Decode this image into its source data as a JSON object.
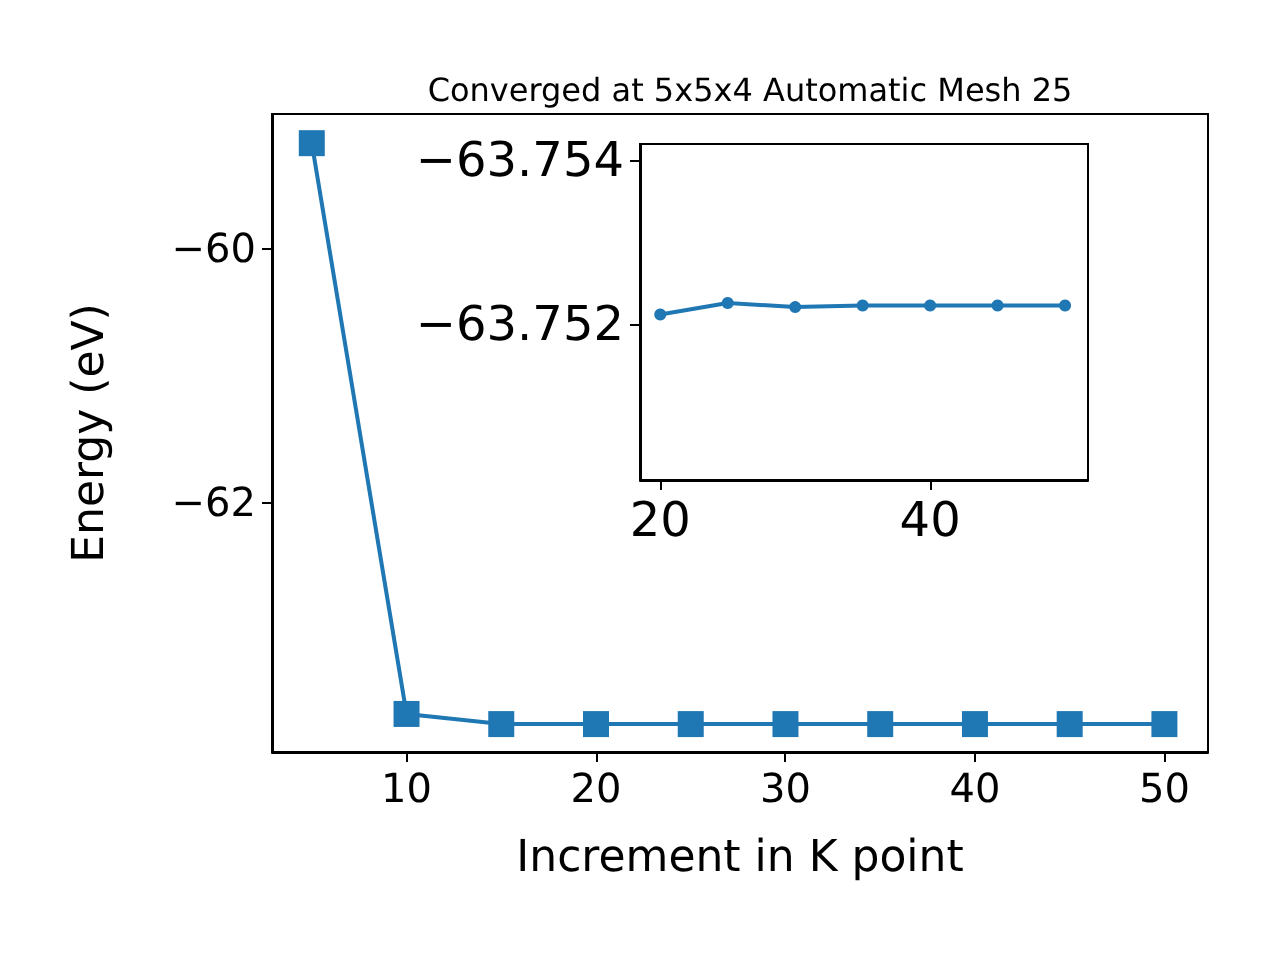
{
  "chart_data": [
    {
      "type": "line",
      "title": "Converged at 5x5x4 Automatic Mesh 25",
      "xlabel": "Increment in K point",
      "ylabel": "Energy (eV)",
      "x": [
        5,
        10,
        15,
        20,
        25,
        30,
        35,
        40,
        45,
        50
      ],
      "series": [
        {
          "color": "#1f77b4",
          "values": [
            -59.17,
            -63.67,
            -63.75,
            -63.75,
            -63.75,
            -63.75,
            -63.75,
            -63.75,
            -63.75,
            -63.75
          ]
        }
      ],
      "xlim": [
        2.9,
        52.3
      ],
      "xticks": [
        10,
        20,
        30,
        40,
        50
      ],
      "ylim": [
        -63.97,
        -58.94
      ],
      "yticks": [
        {
          "value": -60,
          "label": "−60"
        },
        {
          "value": -62,
          "label": "−62"
        }
      ],
      "marker": "square",
      "line_style": "solid",
      "grid": false
    },
    {
      "type": "line",
      "x": [
        20,
        25,
        30,
        35,
        40,
        45,
        50
      ],
      "series": [
        {
          "color": "#1f77b4",
          "values": [
            -63.75212,
            -63.75226,
            -63.75221,
            -63.75223,
            -63.75223,
            -63.75223,
            -63.75223
          ]
        }
      ],
      "xlim": [
        18.5,
        51.7
      ],
      "xticks": [
        20,
        40
      ],
      "ylim": [
        -63.7501,
        -63.7542
      ],
      "yticks": [
        {
          "value": -63.754,
          "label": "−63.754"
        },
        {
          "value": -63.752,
          "label": "−63.752"
        }
      ],
      "marker": "circle",
      "line_style": "solid",
      "grid": false
    }
  ]
}
